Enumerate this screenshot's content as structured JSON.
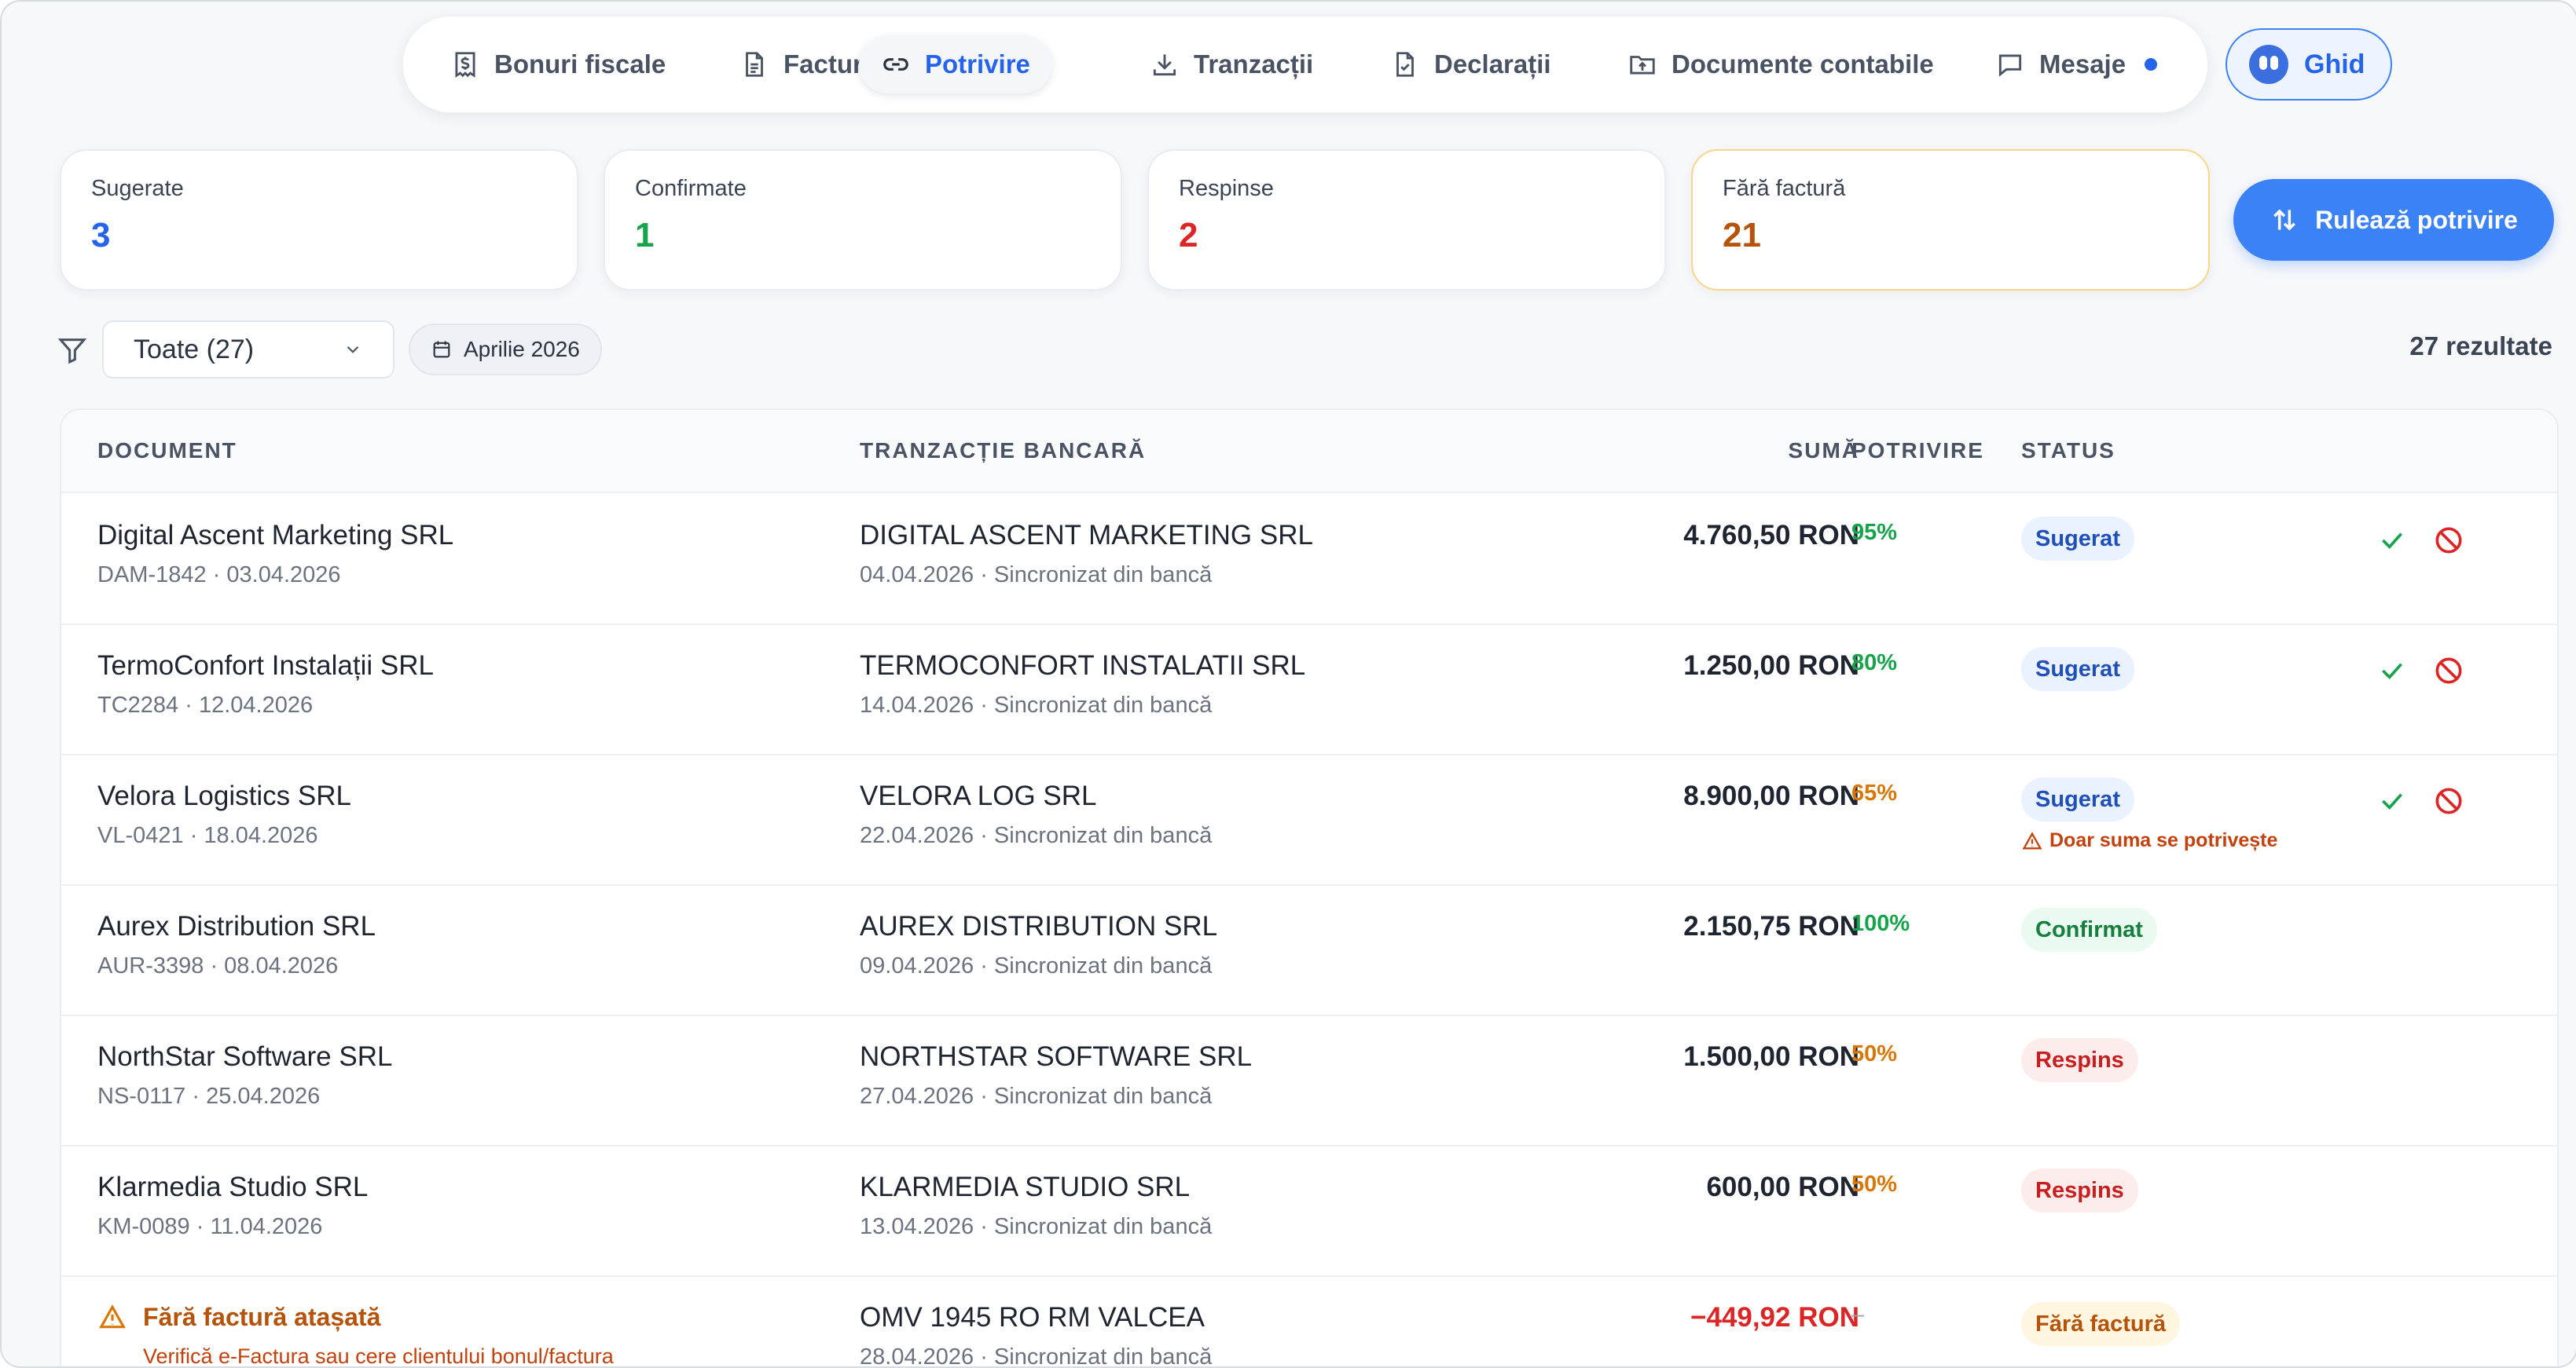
{
  "nav": {
    "tabs": [
      {
        "label": "Bonuri fiscale",
        "icon": "receipt-dollar-icon"
      },
      {
        "label": "Facturi",
        "icon": "document-icon"
      },
      {
        "label": "Potrivire",
        "icon": "link-icon",
        "active": true
      },
      {
        "label": "Tranzacții",
        "icon": "download-icon"
      },
      {
        "label": "Declarații",
        "icon": "file-check-icon"
      },
      {
        "label": "Documente contabile",
        "icon": "folder-upload-icon"
      },
      {
        "label": "Mesaje",
        "icon": "chat-icon",
        "has_dot": true
      }
    ],
    "guide_label": "Ghid"
  },
  "stats": [
    {
      "label": "Sugerate",
      "value": "3",
      "color": "#2563eb"
    },
    {
      "label": "Confirmate",
      "value": "1",
      "color": "#16a34a"
    },
    {
      "label": "Respinse",
      "value": "2",
      "color": "#dc2626"
    },
    {
      "label": "Fără factură",
      "value": "21",
      "color": "#b45309"
    }
  ],
  "run_button": "Rulează potrivire",
  "filter": {
    "selected": "Toate (27)",
    "period": "Aprilie 2026",
    "results": "27 rezultate"
  },
  "table": {
    "headers": {
      "document": "DOCUMENT",
      "transaction": "TRANZACȚIE BANCARĂ",
      "amount": "SUMĂ",
      "match": "POTRIVIRE",
      "status": "STATUS"
    },
    "rows": [
      {
        "doc": "Digital Ascent Marketing SRL",
        "doc_meta": "DAM-1842 · 03.04.2026",
        "tx": "DIGITAL ASCENT MARKETING SRL",
        "tx_meta": "04.04.2026 · Sincronizat din bancă",
        "amount": "4.760,50 RON",
        "match": "95%",
        "match_color": "#16a34a",
        "status": "Sugerat",
        "status_kind": "sug",
        "actions": true
      },
      {
        "doc": "TermoConfort Instalații SRL",
        "doc_meta": "TC2284 · 12.04.2026",
        "tx": "TERMOCONFORT INSTALATII SRL",
        "tx_meta": "14.04.2026 · Sincronizat din bancă",
        "amount": "1.250,00 RON",
        "match": "80%",
        "match_color": "#16a34a",
        "status": "Sugerat",
        "status_kind": "sug",
        "actions": true
      },
      {
        "doc": "Velora Logistics SRL",
        "doc_meta": "VL-0421 · 18.04.2026",
        "tx": "VELORA LOG SRL",
        "tx_meta": "22.04.2026 · Sincronizat din bancă",
        "amount": "8.900,00 RON",
        "match": "65%",
        "match_color": "#d97706",
        "status": "Sugerat",
        "status_kind": "sug",
        "note": "Doar suma se potrivește",
        "actions": true
      },
      {
        "doc": "Aurex Distribution SRL",
        "doc_meta": "AUR-3398 · 08.04.2026",
        "tx": "AUREX DISTRIBUTION SRL",
        "tx_meta": "09.04.2026 · Sincronizat din bancă",
        "amount": "2.150,75 RON",
        "match": "100%",
        "match_color": "#16a34a",
        "status": "Confirmat",
        "status_kind": "conf"
      },
      {
        "doc": "NorthStar Software SRL",
        "doc_meta": "NS-0117 · 25.04.2026",
        "tx": "NORTHSTAR SOFTWARE SRL",
        "tx_meta": "27.04.2026 · Sincronizat din bancă",
        "amount": "1.500,00 RON",
        "match": "50%",
        "match_color": "#d97706",
        "status": "Respins",
        "status_kind": "resp"
      },
      {
        "doc": "Klarmedia Studio SRL",
        "doc_meta": "KM-0089 · 11.04.2026",
        "tx": "KLARMEDIA STUDIO SRL",
        "tx_meta": "13.04.2026 · Sincronizat din bancă",
        "amount": "600,00 RON",
        "match": "50%",
        "match_color": "#d97706",
        "status": "Respins",
        "status_kind": "resp"
      },
      {
        "doc_warning": "Fără factură atașată",
        "doc_warning_sub": "Verifică e-Factura sau cere clientului bonul/factura",
        "tx": "OMV 1945 RO RM VALCEA",
        "tx_meta": "28.04.2026 · Sincronizat din bancă",
        "amount": "−449,92 RON",
        "amount_color": "#dc2626",
        "match": "–",
        "match_color": "#9ca3af",
        "status": "Fără factură",
        "status_kind": "fara"
      }
    ]
  }
}
